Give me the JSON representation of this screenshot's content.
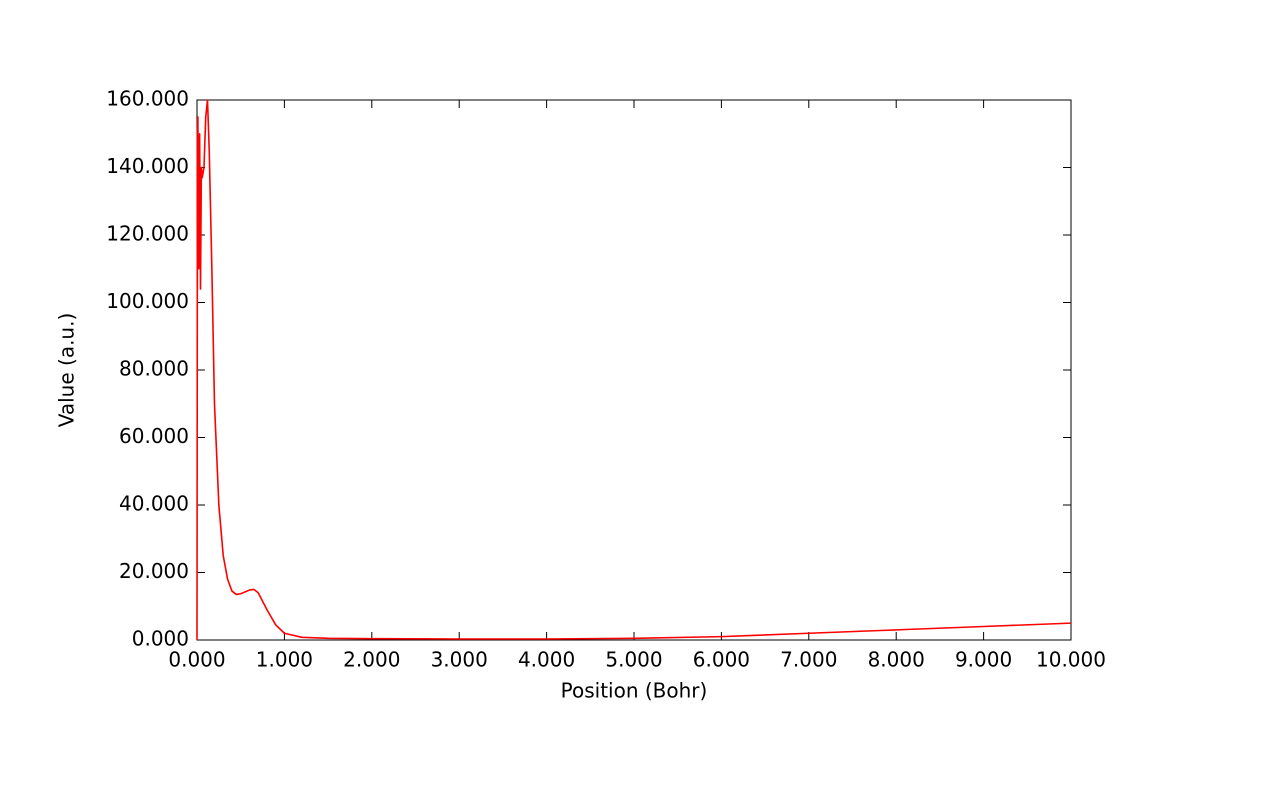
{
  "chart_data": {
    "type": "line",
    "x_label": "Position (Bohr)",
    "y_label": "Value (a.u.)",
    "x": [
      0,
      0.005,
      0.01,
      0.02,
      0.03,
      0.04,
      0.05,
      0.06,
      0.08,
      0.1,
      0.12,
      0.14,
      0.17,
      0.2,
      0.25,
      0.3,
      0.35,
      0.4,
      0.45,
      0.5,
      0.6,
      0.65,
      0.7,
      0.8,
      0.9,
      1.0,
      1.2,
      1.5,
      2,
      3,
      4,
      5,
      6,
      7,
      8,
      9,
      10
    ],
    "series": [
      {
        "color": "#ff0000",
        "values": [
          0,
          150,
          155,
          110,
          150,
          104,
          140,
          137,
          140,
          155,
          160,
          145,
          110,
          70,
          40,
          25,
          18,
          14.5,
          13.5,
          13.7,
          14.8,
          15,
          14,
          9,
          4.5,
          2,
          0.8,
          0.5,
          0.4,
          0.3,
          0.3,
          0.5,
          1,
          2,
          3,
          4,
          5
        ]
      }
    ],
    "xlim": [
      0,
      10
    ],
    "ylim": [
      0,
      160
    ],
    "xticks": [
      {
        "value": 0,
        "label": "0.000"
      },
      {
        "value": 1,
        "label": "1.000"
      },
      {
        "value": 2,
        "label": "2.000"
      },
      {
        "value": 3,
        "label": "3.000"
      },
      {
        "value": 4,
        "label": "4.000"
      },
      {
        "value": 5,
        "label": "5.000"
      },
      {
        "value": 6,
        "label": "6.000"
      },
      {
        "value": 7,
        "label": "7.000"
      },
      {
        "value": 8,
        "label": "8.000"
      },
      {
        "value": 9,
        "label": "9.000"
      },
      {
        "value": 10,
        "label": "10.000"
      }
    ],
    "yticks": [
      {
        "value": 0,
        "label": "0.000"
      },
      {
        "value": 20,
        "label": "20.000"
      },
      {
        "value": 40,
        "label": "40.000"
      },
      {
        "value": 60,
        "label": "60.000"
      },
      {
        "value": 80,
        "label": "80.000"
      },
      {
        "value": 100,
        "label": "100.000"
      },
      {
        "value": 120,
        "label": "120.000"
      },
      {
        "value": 140,
        "label": "140.000"
      },
      {
        "value": 160,
        "label": "160.000"
      }
    ],
    "grid": false
  }
}
